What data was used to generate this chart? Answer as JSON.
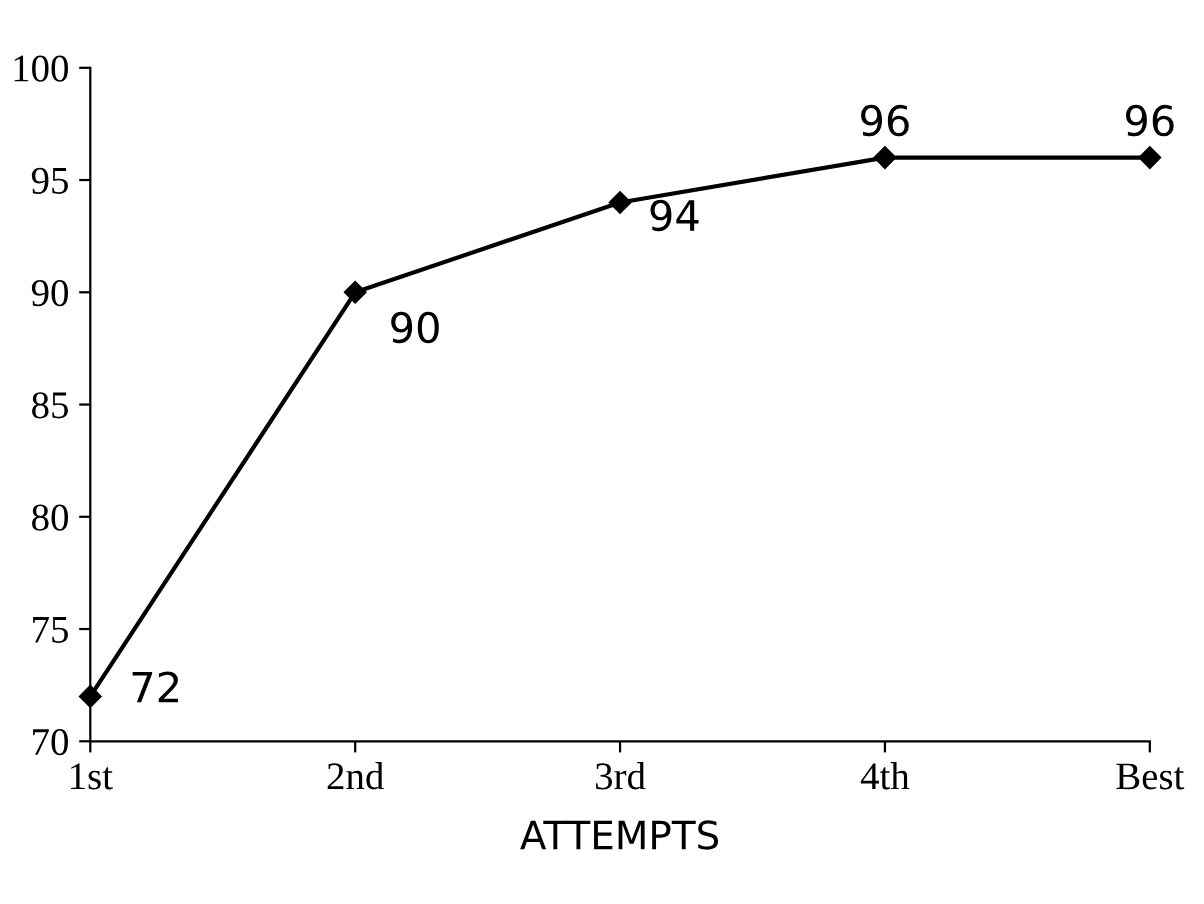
{
  "chart_data": {
    "type": "line",
    "xlabel": "ATTEMPTS",
    "categories": [
      "1st",
      "2nd",
      "3rd",
      "4th",
      "Best"
    ],
    "series": [
      {
        "color": "#000000",
        "values": [
          72,
          90,
          94,
          96,
          96
        ]
      }
    ],
    "ylim": [
      70,
      100
    ],
    "yticks": [
      70,
      75,
      80,
      85,
      90,
      95,
      100
    ],
    "marker": "diamond",
    "line_style": "solid",
    "data_labels": true,
    "grid": false,
    "legend": false
  }
}
